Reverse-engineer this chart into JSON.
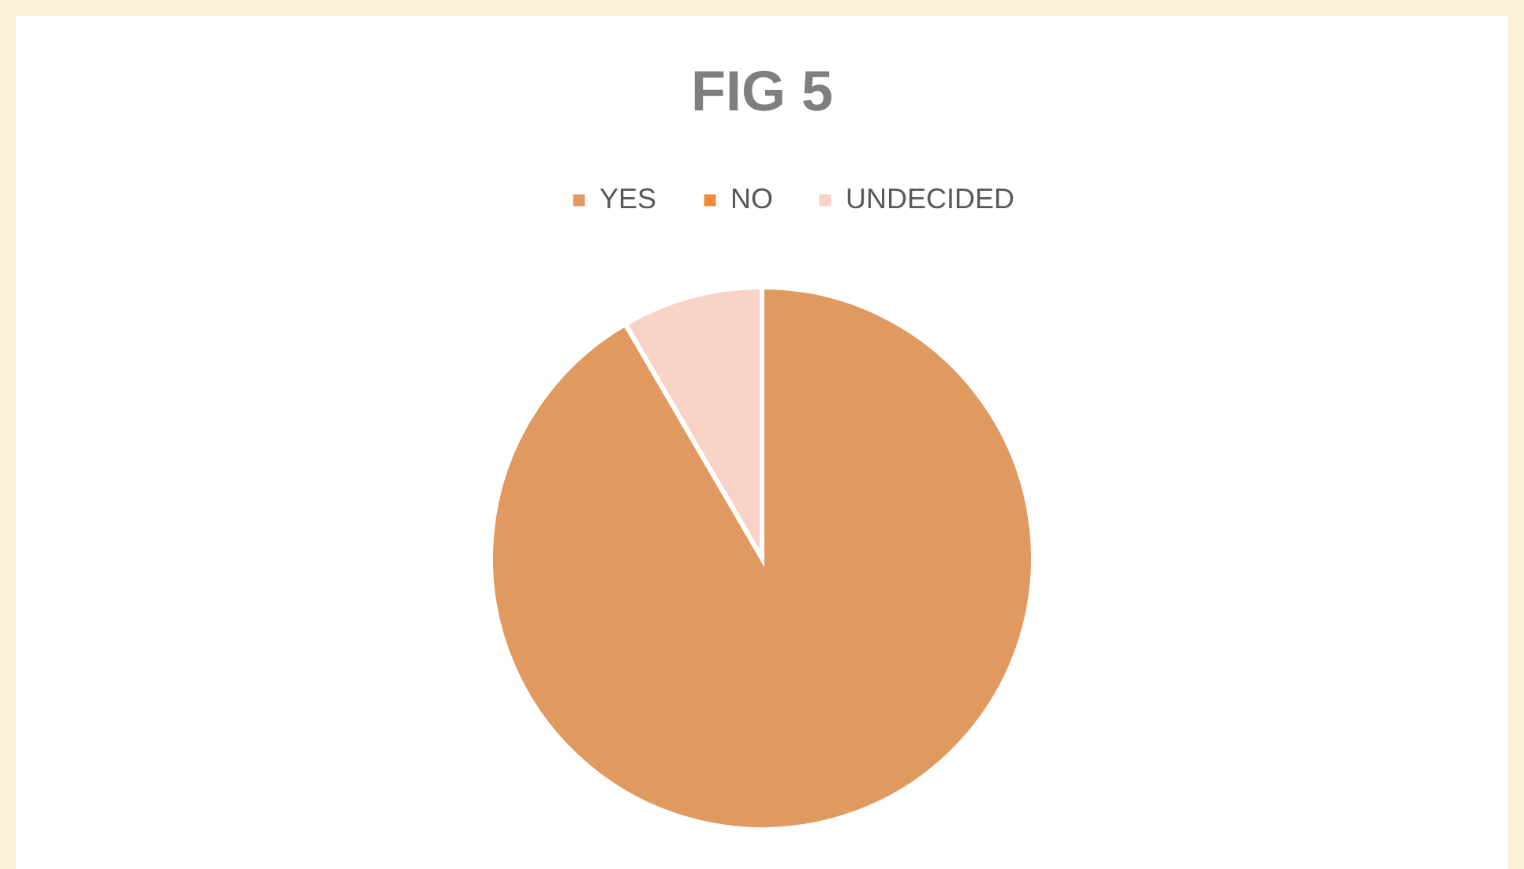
{
  "chart_data": {
    "type": "pie",
    "title": "FIG 5",
    "categories": [
      "YES",
      "NO",
      "UNDECIDED"
    ],
    "values": [
      91.6,
      0,
      8.4
    ],
    "colors": [
      "#e0995f",
      "#f08a3c",
      "#f9d3c8"
    ],
    "legend": "top"
  }
}
